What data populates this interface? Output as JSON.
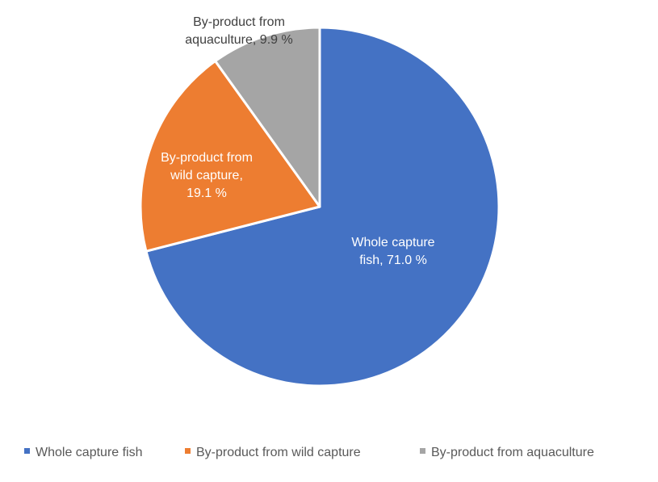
{
  "chart_data": {
    "type": "pie",
    "title": "",
    "start_angle_deg": 0,
    "direction": "clockwise",
    "slices": [
      {
        "name": "Whole capture fish",
        "value": 71.0,
        "color": "#4472C4",
        "label_lines": [
          "Whole capture",
          "fish, 71.0 %"
        ],
        "label_color": "#ffffff"
      },
      {
        "name": "By-product from wild capture",
        "value": 19.1,
        "color": "#ED7D31",
        "label_lines": [
          "By-product from",
          "wild capture,",
          "19.1 %"
        ],
        "label_color": "#ffffff"
      },
      {
        "name": "By-product from aquaculture",
        "value": 9.9,
        "color": "#A5A5A5",
        "label_lines": [
          "By-product from",
          "aquaculture, 9.9 %"
        ],
        "label_color": "#404040"
      }
    ],
    "legend": {
      "position": "bottom"
    },
    "slice_border_color": "#ffffff"
  }
}
